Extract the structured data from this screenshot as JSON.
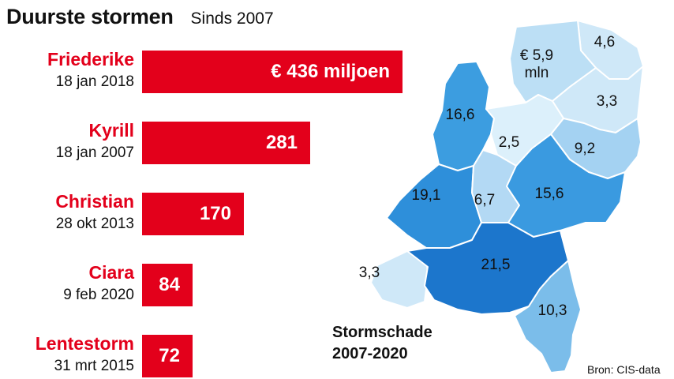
{
  "header": {
    "title": "Duurste stormen",
    "subtitle": "Sinds 2007"
  },
  "chart_data": [
    {
      "type": "bar",
      "orientation": "horizontal",
      "title": "Duurste stormen",
      "subtitle": "Sinds 2007",
      "unit": "€ miljoen",
      "categories": [
        "Friederike",
        "Kyrill",
        "Christian",
        "Ciara",
        "Lentestorm"
      ],
      "dates": [
        "18 jan 2018",
        "18 jan 2007",
        "28 okt 2013",
        "9 feb 2020",
        "31 mrt 2015"
      ],
      "values": [
        436,
        281,
        170,
        84,
        72
      ],
      "value_labels": [
        "€ 436 miljoen",
        "281",
        "170",
        "84",
        "72"
      ],
      "bar_color": "#e3001b",
      "xlim": [
        0,
        436
      ]
    },
    {
      "type": "choropleth",
      "title": "Stormschade 2007-2020",
      "unit": "€ miljoen",
      "regions": [
        {
          "id": "groningen",
          "value": 4.6,
          "label": "4,6",
          "color": "#cfe8f8"
        },
        {
          "id": "friesland",
          "value": 5.9,
          "label": "€ 5,9\nmln",
          "color": "#bcdff5"
        },
        {
          "id": "drenthe",
          "value": 3.3,
          "label": "3,3",
          "color": "#cfe8f8"
        },
        {
          "id": "noord-holland",
          "value": 16.6,
          "label": "16,6",
          "color": "#3c9de0"
        },
        {
          "id": "flevoland",
          "value": 2.5,
          "label": "2,5",
          "color": "#dcf0fb"
        },
        {
          "id": "overijssel",
          "value": 9.2,
          "label": "9,2",
          "color": "#a4d2f2"
        },
        {
          "id": "zuid-holland",
          "value": 19.1,
          "label": "19,1",
          "color": "#2e8fda"
        },
        {
          "id": "utrecht",
          "value": 6.7,
          "label": "6,7",
          "color": "#b3d9f4"
        },
        {
          "id": "gelderland",
          "value": 15.6,
          "label": "15,6",
          "color": "#3a9ae0"
        },
        {
          "id": "zeeland",
          "value": 3.3,
          "label": "3,3",
          "color": "#cfe8f8"
        },
        {
          "id": "noord-brabant",
          "value": 21.5,
          "label": "21,5",
          "color": "#1c76cc"
        },
        {
          "id": "limburg",
          "value": 10.3,
          "label": "10,3",
          "color": "#7bbdea"
        }
      ]
    }
  ],
  "legend": {
    "line1": "Stormschade",
    "line2": "2007-2020"
  },
  "source": "Bron: CIS-data"
}
